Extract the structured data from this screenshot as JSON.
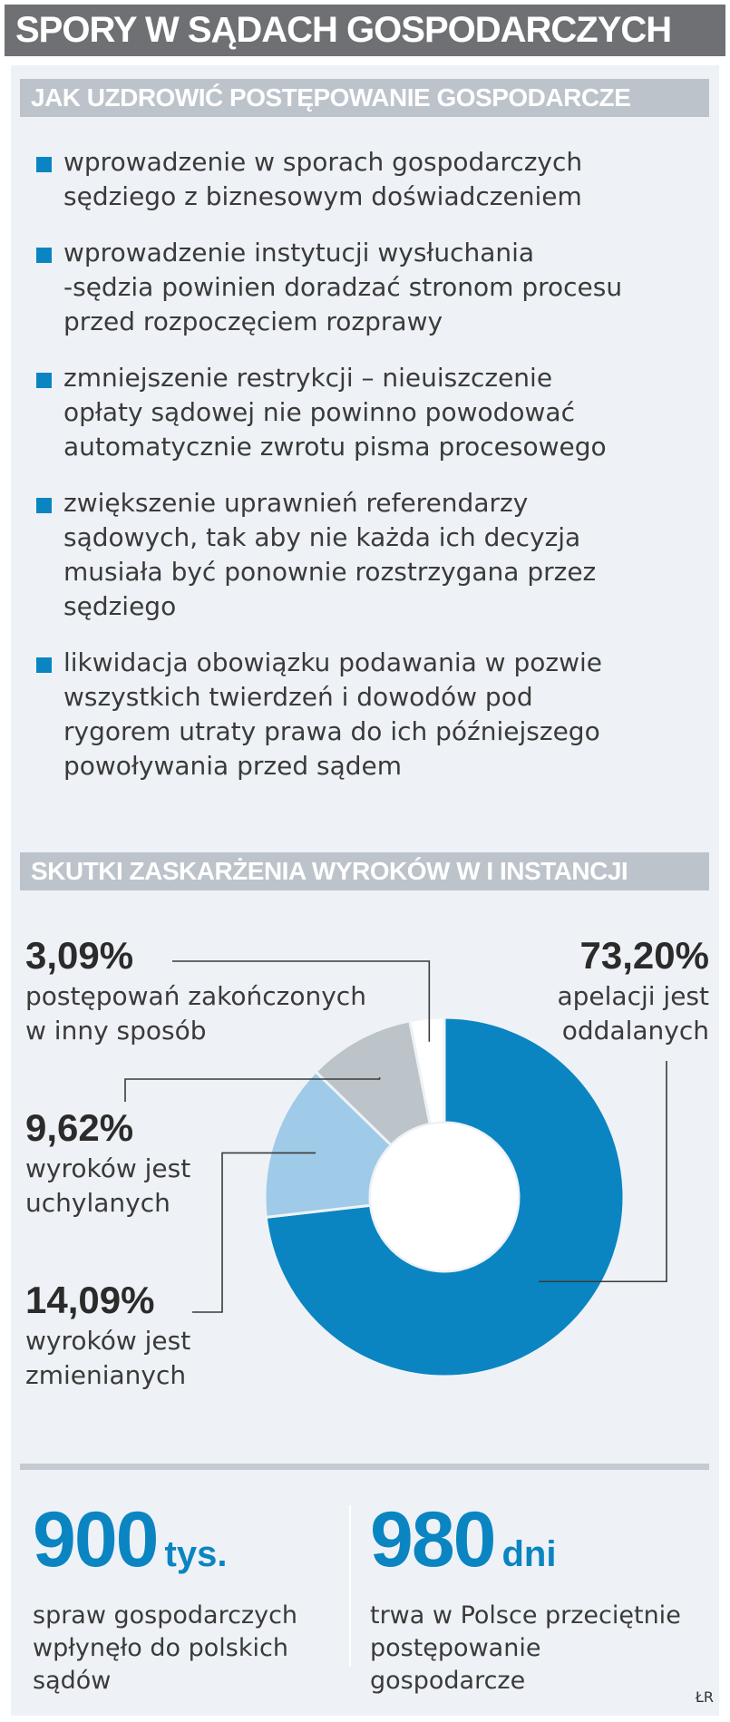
{
  "title": "SPORY W SĄDACH GOSPODARCZYCH",
  "section1": {
    "header": "JAK UZDROWIĆ POSTĘPOWANIE GOSPODARCZE",
    "items": [
      [
        "wprowadzenie w sporach gospodarczych",
        "sędziego z biznesowym doświadczeniem"
      ],
      [
        "wprowadzenie instytucji wysłuchania",
        "-sędzia powinien doradzać stronom procesu",
        "przed rozpoczęciem rozprawy"
      ],
      [
        "zmniejszenie restrykcji – nieuiszczenie",
        "opłaty sądowej nie powinno powodować",
        "automatycznie zwrotu pisma procesowego"
      ],
      [
        "zwiększenie uprawnień referendarzy",
        "sądowych, tak aby nie każda ich decyzja",
        "musiała być ponownie rozstrzygana przez",
        "sędziego"
      ],
      [
        "likwidacja obowiązku podawania w pozwie",
        "wszystkich twierdzeń i dowodów pod",
        "rygorem utraty prawa do ich późniejszego",
        "powoływania przed sądem"
      ]
    ]
  },
  "section2": {
    "header": "SKUTKI ZASKARŻENIA WYROKÓW W I INSTANCJI"
  },
  "chart_data": {
    "type": "pie",
    "subtype": "donut",
    "slices": [
      {
        "value": 73.2,
        "display": "73,20%",
        "label_lines": [
          "apelacji jest",
          "oddalanych"
        ],
        "color": "#0a85c2"
      },
      {
        "value": 14.09,
        "display": "14,09%",
        "label_lines": [
          "wyroków jest",
          "zmienianych"
        ],
        "color": "#9fcbe8"
      },
      {
        "value": 9.62,
        "display": "9,62%",
        "label_lines": [
          "wyroków jest",
          "uchylanych"
        ],
        "color": "#bcc3c9"
      },
      {
        "value": 3.09,
        "display": "3,09%",
        "label_lines": [
          "postępowań zakończonych",
          "w inny sposób"
        ],
        "color": "#ffffff"
      }
    ]
  },
  "stats": [
    {
      "number": "900",
      "unit": "tys.",
      "desc": [
        "spraw gospodarczych",
        "wpłynęło do polskich",
        "sądów"
      ]
    },
    {
      "number": "980",
      "unit": "dni",
      "desc": [
        "trwa w Polsce przeciętnie",
        "postępowanie",
        "gospodarcze"
      ]
    }
  ],
  "credit": "ŁR",
  "colors": {
    "accent": "#0a85c2",
    "title_bg": "#6f7074",
    "header_bg": "#bcc3cb",
    "panel_bg": "#eef2f6"
  }
}
